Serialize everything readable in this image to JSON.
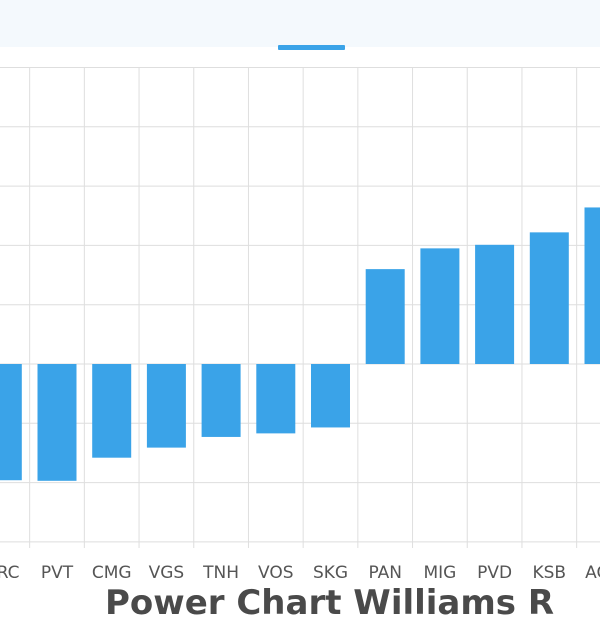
{
  "chart_data": {
    "type": "bar",
    "categories": [
      "VRC",
      "PVT",
      "CMG",
      "VGS",
      "TNH",
      "VOS",
      "SKG",
      "PAN",
      "MIG",
      "PVD",
      "KSB",
      "AGG"
    ],
    "values": [
      -1.96,
      -1.97,
      -1.58,
      -1.41,
      -1.23,
      -1.17,
      -1.07,
      1.6,
      1.95,
      2.01,
      2.22,
      2.64
    ],
    "ylim": [
      -3,
      5
    ],
    "bar_color": "#3aa3e8",
    "grid": true,
    "xlabel": "",
    "ylabel": ""
  },
  "ui": {
    "accent_color": "#3aa3e8",
    "bottom_text": "Power Chart Williams R"
  }
}
